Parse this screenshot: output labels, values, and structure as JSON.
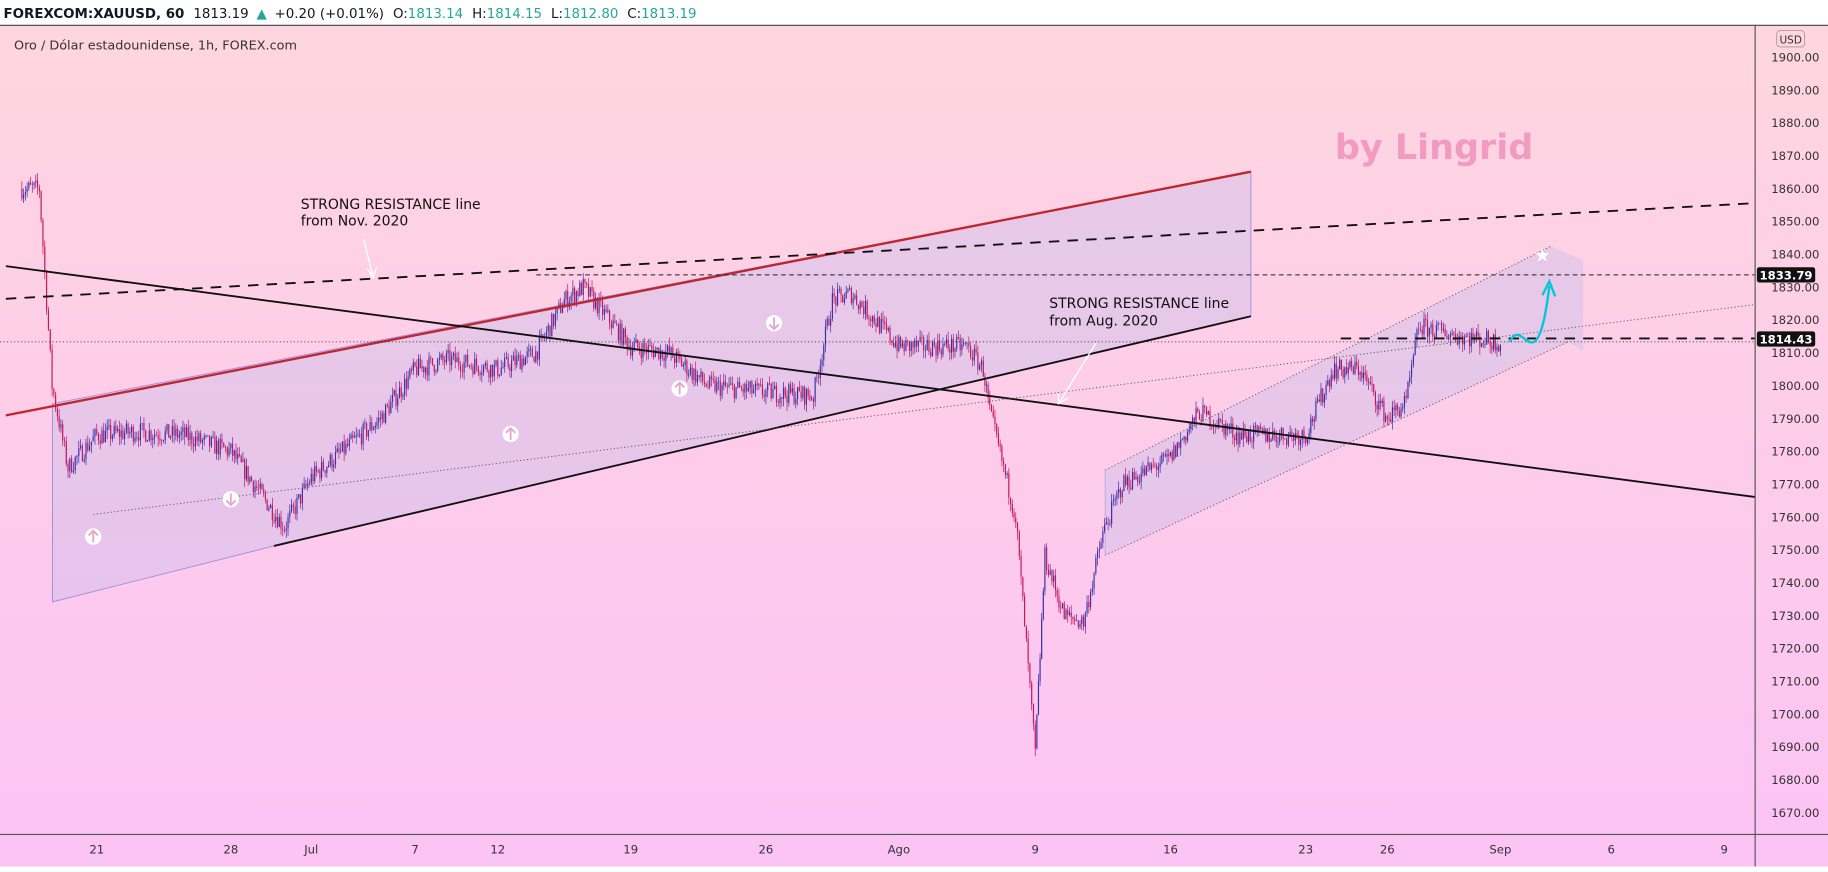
{
  "header": {
    "symbol": "FOREXCOM:XAUUSD, 60",
    "last": "1813.19",
    "change": "+0.20 (+0.01%)",
    "o_label": "O:",
    "o": "1813.14",
    "h_label": "H:",
    "h": "1814.15",
    "l_label": "L:",
    "l": "1812.80",
    "c_label": "C:",
    "c": "1813.19"
  },
  "chart_title": "Oro / Dólar estadounidense, 1h, FOREX.com",
  "watermark": "by Lingrid",
  "annotations": [
    {
      "line1": "STRONG RESISTANCE line",
      "line2": "from Nov. 2020"
    },
    {
      "line1": "STRONG RESISTANCE line",
      "line2": "from Aug. 2020"
    }
  ],
  "colors": {
    "up": "#3b2fa6",
    "down": "#c2185b",
    "accent_up": "#26a69a",
    "trend_red": "#c0262d",
    "projection": "#00c8d8",
    "watermark": "#f29bc0"
  },
  "chart_data": {
    "type": "candlestick",
    "currency": "USD",
    "ylim": [
      1665,
      1905
    ],
    "yticks": [
      1900,
      1890,
      1880,
      1870,
      1860,
      1850,
      1840,
      1830,
      1820,
      1810,
      1800,
      1790,
      1780,
      1770,
      1760,
      1750,
      1740,
      1730,
      1720,
      1710,
      1700,
      1690,
      1680,
      1670
    ],
    "xticks": [
      {
        "label": "21",
        "date": "2021-06-21"
      },
      {
        "label": "28",
        "date": "2021-06-28"
      },
      {
        "label": "Jul",
        "date": "2021-07-01"
      },
      {
        "label": "7",
        "date": "2021-07-07"
      },
      {
        "label": "12",
        "date": "2021-07-12"
      },
      {
        "label": "19",
        "date": "2021-07-19"
      },
      {
        "label": "26",
        "date": "2021-07-26"
      },
      {
        "label": "Ago",
        "date": "2021-08-02"
      },
      {
        "label": "9",
        "date": "2021-08-09"
      },
      {
        "label": "16",
        "date": "2021-08-16"
      },
      {
        "label": "23",
        "date": "2021-08-23"
      },
      {
        "label": "26",
        "date": "2021-08-26"
      },
      {
        "label": "Sep",
        "date": "2021-09-01"
      },
      {
        "label": "6",
        "date": "2021-09-06"
      },
      {
        "label": "9",
        "date": "2021-09-09"
      }
    ],
    "price_path": [
      [
        "2021-06-17T00",
        1860
      ],
      [
        "2021-06-18T00",
        1860
      ],
      [
        "2021-06-18T16",
        1800
      ],
      [
        "2021-06-19T12",
        1775
      ],
      [
        "2021-06-21T00",
        1785
      ],
      [
        "2021-06-23T00",
        1786
      ],
      [
        "2021-06-25T12",
        1785
      ],
      [
        "2021-06-28T00",
        1780
      ],
      [
        "2021-06-30T00",
        1757
      ],
      [
        "2021-07-01T00",
        1772
      ],
      [
        "2021-07-05T00",
        1790
      ],
      [
        "2021-07-07T00",
        1805
      ],
      [
        "2021-07-09T00",
        1808
      ],
      [
        "2021-07-12T00",
        1805
      ],
      [
        "2021-07-14T00",
        1810
      ],
      [
        "2021-07-15T12",
        1826
      ],
      [
        "2021-07-16T12",
        1830
      ],
      [
        "2021-07-19T00",
        1812
      ],
      [
        "2021-07-21T00",
        1810
      ],
      [
        "2021-07-23T00",
        1800
      ],
      [
        "2021-07-26T00",
        1798
      ],
      [
        "2021-07-28T12",
        1797
      ],
      [
        "2021-07-29T12",
        1826
      ],
      [
        "2021-07-30T12",
        1828
      ],
      [
        "2021-08-02T00",
        1812
      ],
      [
        "2021-08-04T00",
        1812
      ],
      [
        "2021-08-05T12",
        1812
      ],
      [
        "2021-08-06T08",
        1805
      ],
      [
        "2021-08-06T16",
        1792
      ],
      [
        "2021-08-08T00",
        1760
      ],
      [
        "2021-08-09T00",
        1688
      ],
      [
        "2021-08-09T12",
        1748
      ],
      [
        "2021-08-10T12",
        1730
      ],
      [
        "2021-08-11T12",
        1728
      ],
      [
        "2021-08-12T12",
        1755
      ],
      [
        "2021-08-13T12",
        1770
      ],
      [
        "2021-08-16T00",
        1778
      ],
      [
        "2021-08-17T12",
        1792
      ],
      [
        "2021-08-19T12",
        1785
      ],
      [
        "2021-08-23T00",
        1785
      ],
      [
        "2021-08-24T00",
        1805
      ],
      [
        "2021-08-25T00",
        1805
      ],
      [
        "2021-08-26T00",
        1790
      ],
      [
        "2021-08-27T00",
        1795
      ],
      [
        "2021-08-27T16",
        1818
      ],
      [
        "2021-08-30T00",
        1815
      ],
      [
        "2021-09-01T00",
        1813.19
      ]
    ],
    "price_labels": [
      "1833.79",
      "1814.43"
    ],
    "horizontal_levels": [
      1833.79,
      1814.43
    ]
  }
}
